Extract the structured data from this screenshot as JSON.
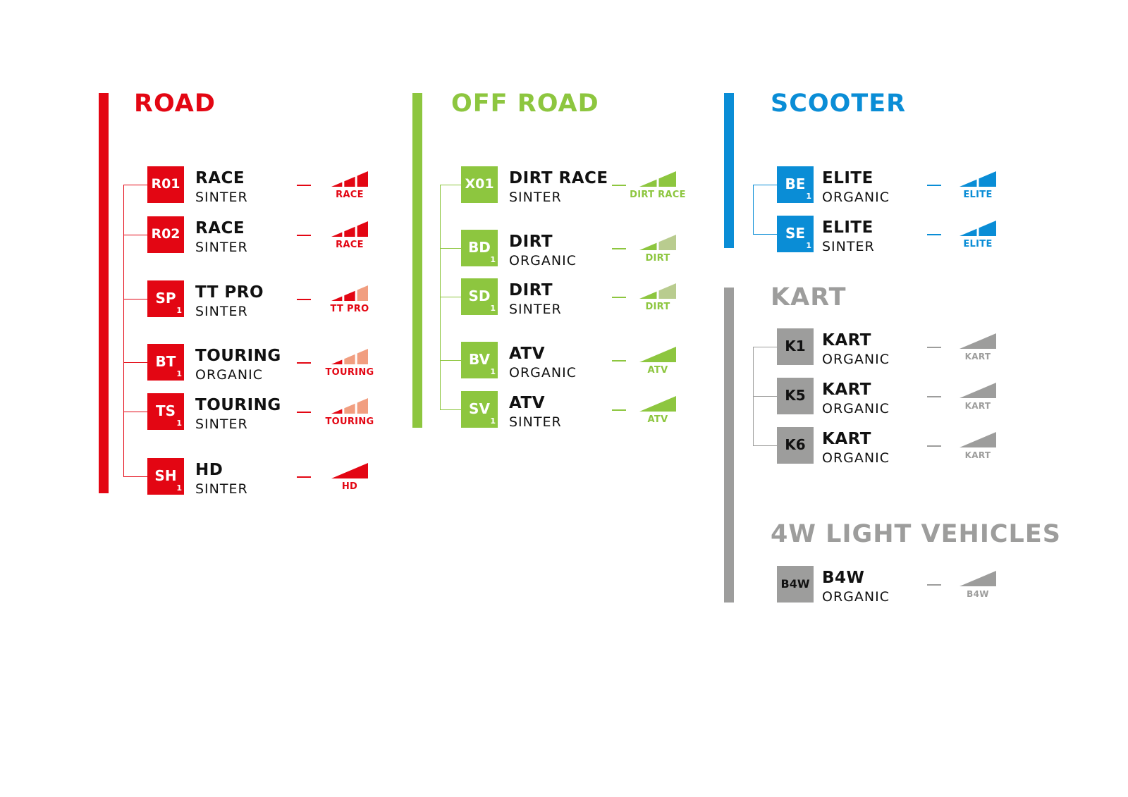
{
  "groups": [
    {
      "id": "road",
      "title": "ROAD",
      "color": "#e30613",
      "light_color": "#f19e80",
      "items": [
        {
          "code": "R01",
          "sub": "",
          "name": "RACE",
          "type": "SINTER",
          "icon_label": "RACE",
          "levels": [
            1,
            1,
            1
          ]
        },
        {
          "code": "R02",
          "sub": "",
          "name": "RACE",
          "type": "SINTER",
          "icon_label": "RACE",
          "levels": [
            1,
            1,
            1
          ]
        },
        {
          "code": "SP",
          "sub": "1",
          "name": "TT PRO",
          "type": "SINTER",
          "icon_label": "TT PRO",
          "levels": [
            1,
            1,
            0
          ]
        },
        {
          "code": "BT",
          "sub": "1",
          "name": "TOURING",
          "type": "ORGANIC",
          "icon_label": "TOURING",
          "levels": [
            1,
            0,
            0
          ]
        },
        {
          "code": "TS",
          "sub": "1",
          "name": "TOURING",
          "type": "SINTER",
          "icon_label": "TOURING",
          "levels": [
            1,
            0,
            0
          ]
        },
        {
          "code": "SH",
          "sub": "1",
          "name": "HD",
          "type": "SINTER",
          "icon_label": "HD",
          "levels": [
            1
          ]
        }
      ]
    },
    {
      "id": "offroad",
      "title": "OFF ROAD",
      "color": "#8dc63f",
      "light_color": "#b9cc8f",
      "items": [
        {
          "code": "X01",
          "sub": "",
          "name": "DIRT RACE",
          "type": "SINTER",
          "icon_label": "DIRT RACE",
          "levels": [
            1,
            1
          ]
        },
        {
          "code": "BD",
          "sub": "1",
          "name": "DIRT",
          "type": "ORGANIC",
          "icon_label": "DIRT",
          "levels": [
            1,
            0
          ]
        },
        {
          "code": "SD",
          "sub": "1",
          "name": "DIRT",
          "type": "SINTER",
          "icon_label": "DIRT",
          "levels": [
            1,
            0
          ]
        },
        {
          "code": "BV",
          "sub": "1",
          "name": "ATV",
          "type": "ORGANIC",
          "icon_label": "ATV",
          "levels": [
            1
          ]
        },
        {
          "code": "SV",
          "sub": "1",
          "name": "ATV",
          "type": "SINTER",
          "icon_label": "ATV",
          "levels": [
            1
          ]
        }
      ]
    },
    {
      "id": "scooter",
      "title": "SCOOTER",
      "color": "#0a8dd6",
      "light_color": "#8cc6ea",
      "items": [
        {
          "code": "BE",
          "sub": "1",
          "name": "ELITE",
          "type": "ORGANIC",
          "icon_label": "ELITE",
          "levels": [
            1,
            1
          ]
        },
        {
          "code": "SE",
          "sub": "1",
          "name": "ELITE",
          "type": "SINTER",
          "icon_label": "ELITE",
          "levels": [
            1,
            1
          ]
        }
      ]
    },
    {
      "id": "kart",
      "title": "KART",
      "color": "#9d9d9c",
      "light_color": "#cfcfcf",
      "items": [
        {
          "code": "K1",
          "sub": "",
          "name": "KART",
          "type": "ORGANIC",
          "icon_label": "KART",
          "levels": [
            1
          ]
        },
        {
          "code": "K5",
          "sub": "",
          "name": "KART",
          "type": "ORGANIC",
          "icon_label": "KART",
          "levels": [
            1
          ]
        },
        {
          "code": "K6",
          "sub": "",
          "name": "KART",
          "type": "ORGANIC",
          "icon_label": "KART",
          "levels": [
            1
          ]
        }
      ]
    },
    {
      "id": "4w",
      "title": "4W LIGHT VEHICLES",
      "color": "#9d9d9c",
      "light_color": "#cfcfcf",
      "items": [
        {
          "code": "B4W",
          "sub": "",
          "name": "B4W",
          "type": "ORGANIC",
          "icon_label": "B4W",
          "levels": [
            1
          ]
        }
      ]
    }
  ]
}
